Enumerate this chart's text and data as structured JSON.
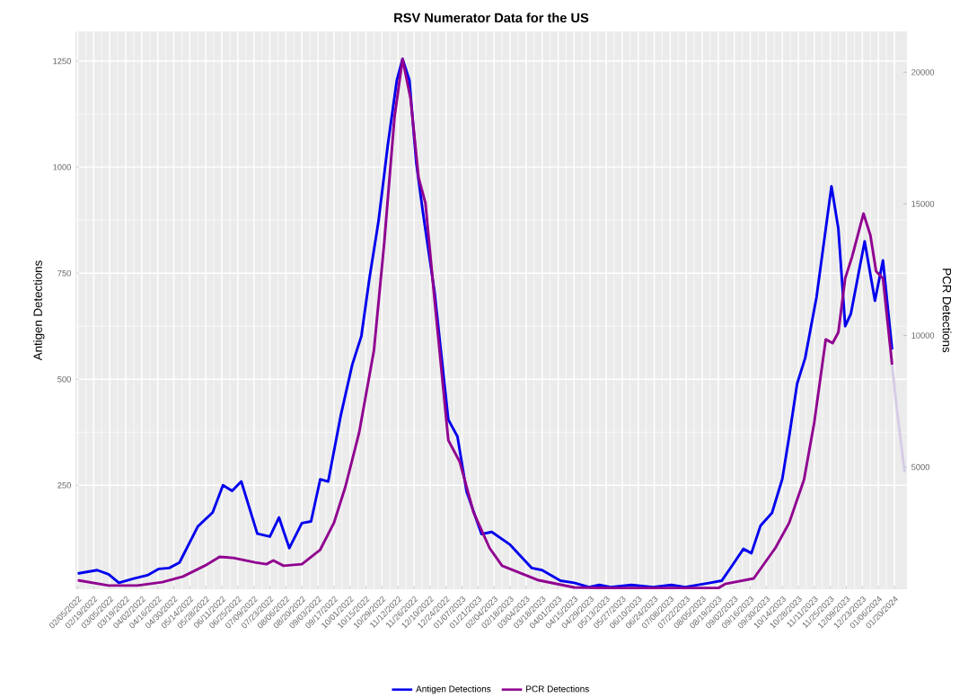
{
  "chart_data": {
    "type": "line",
    "title": "RSV Numerator Data for the US",
    "ylabel": "Antigen Detections",
    "y2label": "PCR Detections",
    "xlim": [
      "2022-02-03",
      "2024-01-31"
    ],
    "ylim": [
      5,
      1320
    ],
    "yticks": [
      250,
      500,
      750,
      1000,
      1250
    ],
    "y2lim": [
      360,
      21550
    ],
    "y2ticks": [
      5000,
      10000,
      15000,
      20000
    ],
    "xticks": [
      {
        "value": "2022-02-05",
        "label": "02/05/2022"
      },
      {
        "value": "2022-02-19",
        "label": "02/19/2022"
      },
      {
        "value": "2022-03-05",
        "label": "03/05/2022"
      },
      {
        "value": "2022-03-19",
        "label": "03/19/2022"
      },
      {
        "value": "2022-04-02",
        "label": "04/02/2022"
      },
      {
        "value": "2022-04-16",
        "label": "04/16/2022"
      },
      {
        "value": "2022-04-30",
        "label": "04/30/2022"
      },
      {
        "value": "2022-05-14",
        "label": "05/14/2022"
      },
      {
        "value": "2022-05-28",
        "label": "05/28/2022"
      },
      {
        "value": "2022-06-11",
        "label": "06/11/2022"
      },
      {
        "value": "2022-06-25",
        "label": "06/25/2022"
      },
      {
        "value": "2022-07-09",
        "label": "07/09/2022"
      },
      {
        "value": "2022-07-23",
        "label": "07/23/2022"
      },
      {
        "value": "2022-08-06",
        "label": "08/06/2022"
      },
      {
        "value": "2022-08-20",
        "label": "08/20/2022"
      },
      {
        "value": "2022-09-03",
        "label": "09/03/2022"
      },
      {
        "value": "2022-09-17",
        "label": "09/17/2022"
      },
      {
        "value": "2022-10-01",
        "label": "10/01/2022"
      },
      {
        "value": "2022-10-15",
        "label": "10/15/2022"
      },
      {
        "value": "2022-10-29",
        "label": "10/29/2022"
      },
      {
        "value": "2022-11-12",
        "label": "11/12/2022"
      },
      {
        "value": "2022-11-26",
        "label": "11/26/2022"
      },
      {
        "value": "2022-12-10",
        "label": "12/10/2022"
      },
      {
        "value": "2022-12-24",
        "label": "12/24/2022"
      },
      {
        "value": "2023-01-07",
        "label": "01/07/2023"
      },
      {
        "value": "2023-01-21",
        "label": "01/21/2023"
      },
      {
        "value": "2023-02-04",
        "label": "02/04/2023"
      },
      {
        "value": "2023-02-18",
        "label": "02/18/2023"
      },
      {
        "value": "2023-03-04",
        "label": "03/04/2023"
      },
      {
        "value": "2023-03-18",
        "label": "03/18/2023"
      },
      {
        "value": "2023-04-01",
        "label": "04/01/2023"
      },
      {
        "value": "2023-04-15",
        "label": "04/15/2023"
      },
      {
        "value": "2023-04-29",
        "label": "04/29/2023"
      },
      {
        "value": "2023-05-13",
        "label": "05/13/2023"
      },
      {
        "value": "2023-05-27",
        "label": "05/27/2023"
      },
      {
        "value": "2023-06-10",
        "label": "06/10/2023"
      },
      {
        "value": "2023-06-24",
        "label": "06/24/2023"
      },
      {
        "value": "2023-07-08",
        "label": "07/08/2023"
      },
      {
        "value": "2023-07-22",
        "label": "07/22/2023"
      },
      {
        "value": "2023-08-05",
        "label": "08/05/2023"
      },
      {
        "value": "2023-08-19",
        "label": "08/19/2023"
      },
      {
        "value": "2023-09-02",
        "label": "09/02/2023"
      },
      {
        "value": "2023-09-16",
        "label": "09/16/2023"
      },
      {
        "value": "2023-09-30",
        "label": "09/30/2023"
      },
      {
        "value": "2023-10-14",
        "label": "10/14/2023"
      },
      {
        "value": "2023-10-28",
        "label": "10/28/2023"
      },
      {
        "value": "2023-11-11",
        "label": "11/11/2023"
      },
      {
        "value": "2023-11-25",
        "label": "11/25/2023"
      },
      {
        "value": "2023-12-09",
        "label": "12/09/2023"
      },
      {
        "value": "2023-12-23",
        "label": "12/23/2023"
      },
      {
        "value": "2024-01-06",
        "label": "01/06/2024"
      },
      {
        "value": "2024-01-20",
        "label": "01/20/2024"
      }
    ],
    "grid": true,
    "legend": "bottom",
    "series": [
      {
        "name": "Antigen Detections",
        "color": "#0000ee",
        "x": [
          "2022-02-05",
          "2022-02-22",
          "2022-03-04",
          "2022-03-13",
          "2022-03-26",
          "2022-04-07",
          "2022-04-17",
          "2022-04-26",
          "2022-05-05",
          "2022-05-21",
          "2022-06-03",
          "2022-06-12",
          "2022-06-20",
          "2022-06-28",
          "2022-07-12",
          "2022-07-23",
          "2022-07-31",
          "2022-08-09",
          "2022-08-20",
          "2022-08-28",
          "2022-09-05",
          "2022-09-12",
          "2022-09-23",
          "2022-10-03",
          "2022-10-11",
          "2022-10-18",
          "2022-10-26",
          "2022-11-03",
          "2022-11-11",
          "2022-11-16",
          "2022-11-22",
          "2022-11-28",
          "2022-12-04",
          "2022-12-14",
          "2022-12-26",
          "2023-01-03",
          "2023-01-11",
          "2023-01-24",
          "2023-02-02",
          "2023-02-18",
          "2023-03-09",
          "2023-03-18",
          "2023-04-03",
          "2023-04-15",
          "2023-04-28",
          "2023-05-07",
          "2023-05-17",
          "2023-06-04",
          "2023-06-23",
          "2023-07-09",
          "2023-07-21",
          "2023-08-12",
          "2023-08-22",
          "2023-08-31",
          "2023-09-10",
          "2023-09-17",
          "2023-09-25",
          "2023-10-05",
          "2023-10-14",
          "2023-10-20",
          "2023-10-27",
          "2023-11-03",
          "2023-11-13",
          "2023-11-21",
          "2023-11-26",
          "2023-12-02",
          "2023-12-08",
          "2023-12-13",
          "2023-12-25",
          "2024-01-03",
          "2024-01-10",
          "2024-01-18"
        ],
        "values": [
          42,
          50,
          40,
          20,
          30,
          38,
          53,
          55,
          68,
          153,
          186,
          250,
          237,
          259,
          136,
          129,
          174,
          102,
          161,
          165,
          264,
          259,
          415,
          534,
          602,
          737,
          873,
          1050,
          1205,
          1255,
          1205,
          1010,
          890,
          705,
          405,
          365,
          235,
          135,
          140,
          110,
          55,
          50,
          25,
          20,
          10,
          15,
          10,
          15,
          10,
          15,
          10,
          20,
          25,
          60,
          100,
          90,
          155,
          185,
          265,
          365,
          490,
          550,
          695,
          855,
          955,
          855,
          625,
          655,
          825,
          685,
          780,
          570
        ]
      },
      {
        "name": "PCR Detections",
        "color": "#900090",
        "axis": "y2",
        "x": [
          "2022-02-05",
          "2022-03-04",
          "2022-03-29",
          "2022-04-20",
          "2022-05-08",
          "2022-05-27",
          "2022-06-09",
          "2022-06-21",
          "2022-07-10",
          "2022-07-20",
          "2022-07-26",
          "2022-08-04",
          "2022-08-20",
          "2022-09-05",
          "2022-09-17",
          "2022-09-27",
          "2022-10-09",
          "2022-10-22",
          "2022-10-31",
          "2022-11-09",
          "2022-11-16",
          "2022-11-23",
          "2022-11-30",
          "2022-12-06",
          "2022-12-14",
          "2022-12-26",
          "2023-01-05",
          "2023-01-17",
          "2023-01-31",
          "2023-02-11",
          "2023-03-15",
          "2023-04-15",
          "2023-05-23",
          "2023-08-19",
          "2023-08-25",
          "2023-09-19",
          "2023-10-08",
          "2023-10-20",
          "2023-11-02",
          "2023-11-11",
          "2023-11-21",
          "2023-11-27",
          "2023-12-02",
          "2023-12-08",
          "2023-12-14",
          "2023-12-24",
          "2023-12-30",
          "2024-01-04",
          "2024-01-10",
          "2024-01-18"
        ],
        "values": [
          700,
          500,
          500,
          630,
          840,
          1250,
          1590,
          1550,
          1380,
          1310,
          1450,
          1250,
          1310,
          1860,
          2880,
          4250,
          6300,
          9440,
          13530,
          18310,
          20500,
          19000,
          16000,
          15030,
          11350,
          6020,
          5200,
          3290,
          1930,
          1250,
          700,
          430,
          400,
          400,
          560,
          770,
          1930,
          2880,
          4520,
          6710,
          9850,
          9710,
          10120,
          12170,
          12990,
          14630,
          13810,
          12440,
          12170,
          8890
        ]
      },
      {
        "color": "#d6cce6",
        "axis": "y2",
        "x": [
          "2024-01-18",
          "2024-01-22",
          "2024-01-29"
        ],
        "values": [
          8890,
          7250,
          4800
        ]
      }
    ]
  }
}
